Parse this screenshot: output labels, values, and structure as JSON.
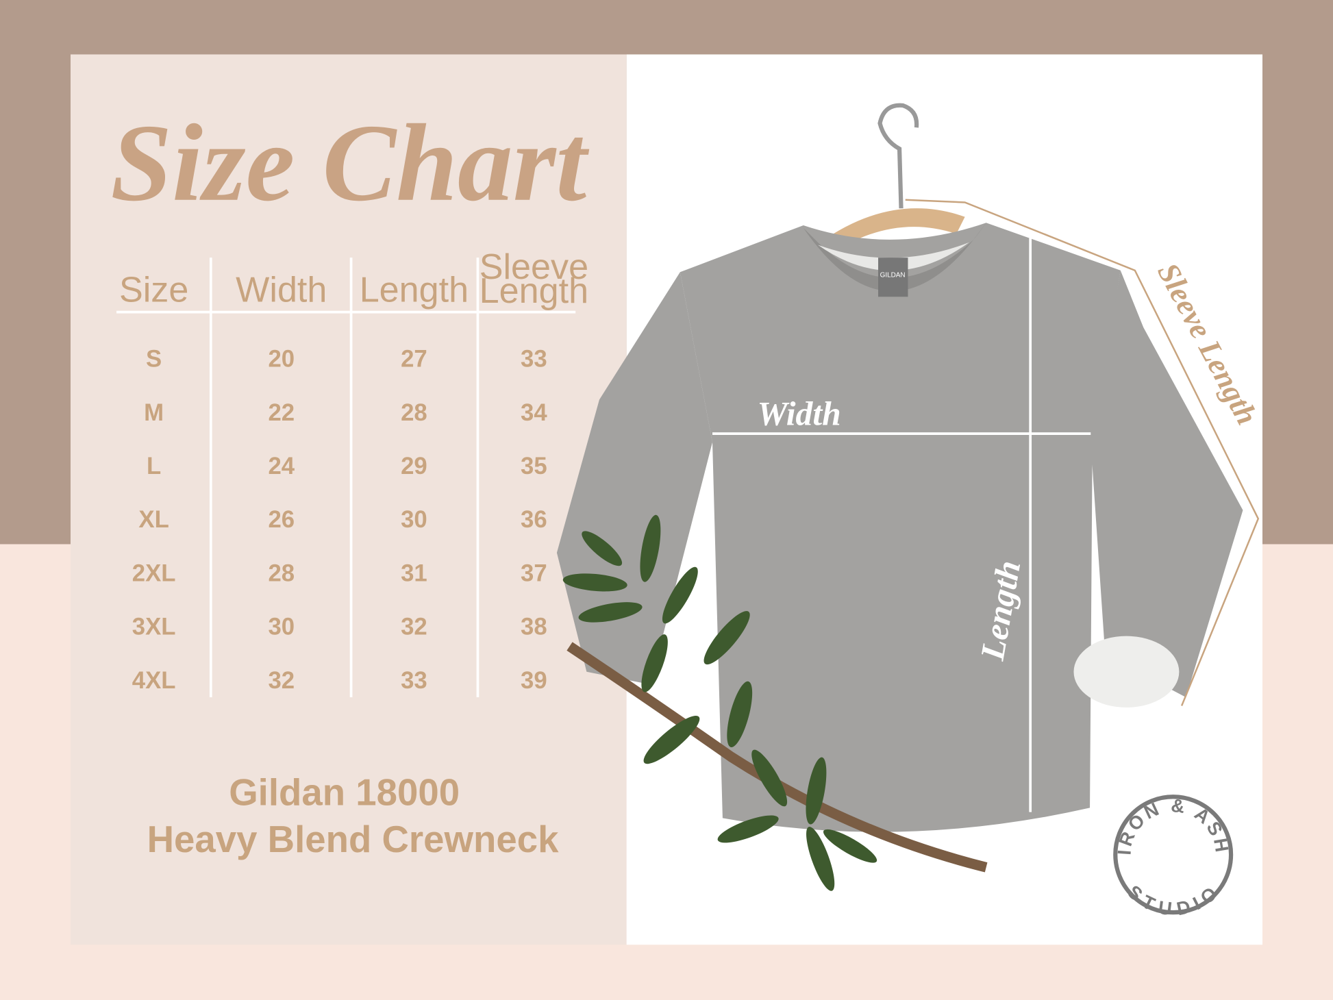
{
  "title": "Size Chart",
  "table": {
    "headers": [
      "Size",
      "Width",
      "Length",
      "Sleeve Length"
    ],
    "rows": [
      [
        "S",
        "20",
        "27",
        "33"
      ],
      [
        "M",
        "22",
        "28",
        "34"
      ],
      [
        "L",
        "24",
        "29",
        "35"
      ],
      [
        "XL",
        "26",
        "30",
        "36"
      ],
      [
        "2XL",
        "28",
        "31",
        "37"
      ],
      [
        "3XL",
        "30",
        "32",
        "38"
      ],
      [
        "4XL",
        "32",
        "33",
        "39"
      ]
    ]
  },
  "footer": {
    "line1": "Gildan 18000",
    "line2": "Heavy Blend Crewneck"
  },
  "diagram": {
    "width": "Width",
    "length": "Length",
    "sleeve": "Sleeve Length",
    "tag": "GILDAN"
  },
  "logo": {
    "top": "IRON & ASH",
    "bottom": "STUDIO"
  }
}
